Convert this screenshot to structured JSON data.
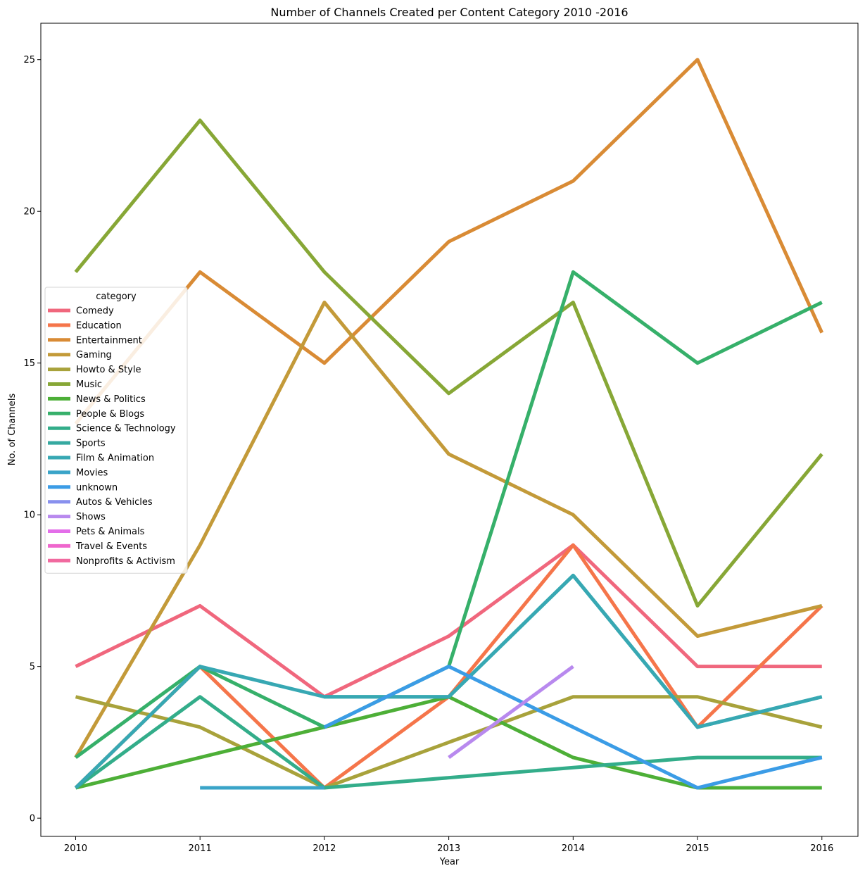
{
  "chart_data": {
    "type": "line",
    "title": "Number of Channels Created per Content Category 2010 -2016",
    "xlabel": "Year",
    "ylabel": "No. of Channels",
    "x": [
      2010,
      2011,
      2012,
      2013,
      2014,
      2015,
      2016
    ],
    "xlim": [
      2009.72,
      2016.29
    ],
    "ylim": [
      -0.6,
      26.2
    ],
    "yticks": [
      0,
      5,
      10,
      15,
      20,
      25
    ],
    "grid": false,
    "legend_title": "category",
    "legend_position": "center-left",
    "series": [
      {
        "name": "Comedy",
        "color": "#f0677d",
        "values": [
          5,
          7,
          4,
          6,
          9,
          5,
          5
        ]
      },
      {
        "name": "Education",
        "color": "#f5754a",
        "values": [
          1,
          5,
          1,
          4,
          9,
          3,
          7
        ]
      },
      {
        "name": "Entertainment",
        "color": "#d98b35",
        "values": [
          13,
          18,
          15,
          19,
          21,
          25,
          16
        ]
      },
      {
        "name": "Gaming",
        "color": "#c39a39",
        "values": [
          2,
          9,
          17,
          12,
          10,
          6,
          7
        ]
      },
      {
        "name": "Howto & Style",
        "color": "#a8a23b",
        "values": [
          4,
          3,
          1,
          2.5,
          4,
          4,
          3
        ]
      },
      {
        "name": "Music",
        "color": "#87a736",
        "values": [
          18,
          23,
          18,
          14,
          17,
          7,
          12
        ]
      },
      {
        "name": "News & Politics",
        "color": "#4daf37",
        "values": [
          1,
          2,
          3,
          4,
          2,
          1,
          1
        ]
      },
      {
        "name": "People & Blogs",
        "color": "#36b06a",
        "values": [
          2,
          5,
          3,
          5,
          18,
          15,
          17
        ]
      },
      {
        "name": "Science & Technology",
        "color": "#33ad8a",
        "values": [
          1,
          4,
          1,
          null,
          null,
          2,
          2
        ]
      },
      {
        "name": "Sports",
        "color": "#35a9a0",
        "values": [
          null,
          null,
          4,
          4,
          8,
          3,
          4
        ]
      },
      {
        "name": "Film & Animation",
        "color": "#37a8b3",
        "values": [
          1,
          5,
          4,
          4,
          8,
          3,
          4
        ]
      },
      {
        "name": "Movies",
        "color": "#3aa4c8",
        "values": [
          null,
          1,
          1,
          null,
          null,
          null,
          null
        ]
      },
      {
        "name": "unknown",
        "color": "#3b9ce6",
        "values": [
          null,
          null,
          3,
          5,
          3,
          1,
          2
        ]
      },
      {
        "name": "Autos & Vehicles",
        "color": "#8890ee",
        "values": [
          null,
          null,
          null,
          null,
          null,
          null,
          null
        ]
      },
      {
        "name": "Shows",
        "color": "#b889ee",
        "values": [
          null,
          null,
          null,
          2,
          5,
          null,
          null
        ]
      },
      {
        "name": "Pets & Animals",
        "color": "#e36ee9",
        "values": [
          null,
          null,
          null,
          null,
          null,
          null,
          null
        ]
      },
      {
        "name": "Travel & Events",
        "color": "#ef66cd",
        "values": [
          null,
          null,
          null,
          null,
          null,
          null,
          null
        ]
      },
      {
        "name": "Nonprofits & Activism",
        "color": "#f1699f",
        "values": [
          null,
          null,
          null,
          null,
          null,
          null,
          null
        ]
      }
    ]
  }
}
